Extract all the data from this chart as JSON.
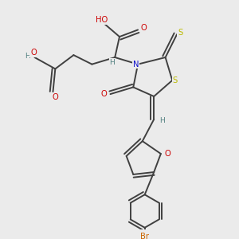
{
  "background_color": "#ebebeb",
  "atom_colors": {
    "C": "#404040",
    "H": "#508080",
    "O": "#cc0000",
    "N": "#1010cc",
    "S": "#bbbb00",
    "Br": "#cc6600"
  },
  "bond_color": "#404040",
  "bond_width": 1.4
}
